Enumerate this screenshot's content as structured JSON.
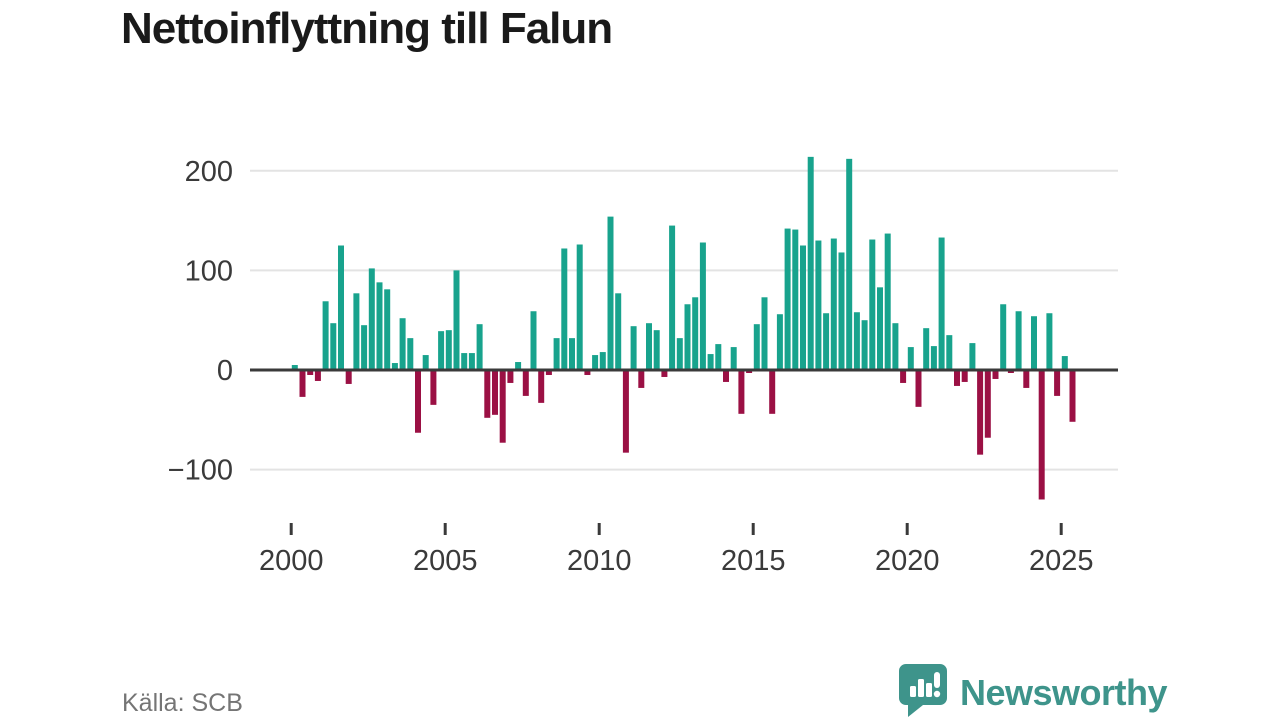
{
  "header": {
    "title": "Nettoinflyttning till Falun"
  },
  "footer": {
    "source_label": "Källa: SCB",
    "brand_name": "Newsworthy"
  },
  "colors": {
    "positive": "#18a38d",
    "negative": "#9b1044",
    "axis": "#3a3a3a",
    "grid": "#e3e3e3",
    "title": "#1a1a1a",
    "source": "#757575",
    "brand": "#3e948b"
  },
  "chart_data": {
    "type": "bar",
    "title": "Nettoinflyttning till Falun",
    "source": "Källa: SCB",
    "x_start": "2000 Q1",
    "x_interval": "quarter",
    "x_tick_years": [
      2000,
      2005,
      2010,
      2015,
      2020,
      2025
    ],
    "y_ticks": [
      200,
      100,
      0,
      -100
    ],
    "ylim": [
      -140,
      230
    ],
    "grid": true,
    "legend": "none",
    "values": [
      5,
      -27,
      -5,
      -11,
      69,
      47,
      125,
      -14,
      77,
      45,
      102,
      88,
      81,
      7,
      52,
      32,
      -63,
      15,
      -35,
      39,
      40,
      100,
      17,
      17,
      46,
      -48,
      -45,
      -73,
      -13,
      8,
      -26,
      59,
      -33,
      -5,
      32,
      122,
      32,
      126,
      -5,
      15,
      18,
      154,
      77,
      -83,
      44,
      -18,
      47,
      40,
      -7,
      145,
      32,
      66,
      73,
      128,
      16,
      26,
      -12,
      23,
      -44,
      -3,
      46,
      73,
      -44,
      56,
      142,
      141,
      125,
      214,
      130,
      57,
      132,
      118,
      212,
      58,
      50,
      131,
      83,
      137,
      47,
      -13,
      23,
      -37,
      42,
      24,
      133,
      35,
      -16,
      -12,
      27,
      -85,
      -68,
      -9,
      66,
      -3,
      59,
      -18,
      54,
      -130,
      57,
      -26,
      14,
      -52
    ]
  }
}
